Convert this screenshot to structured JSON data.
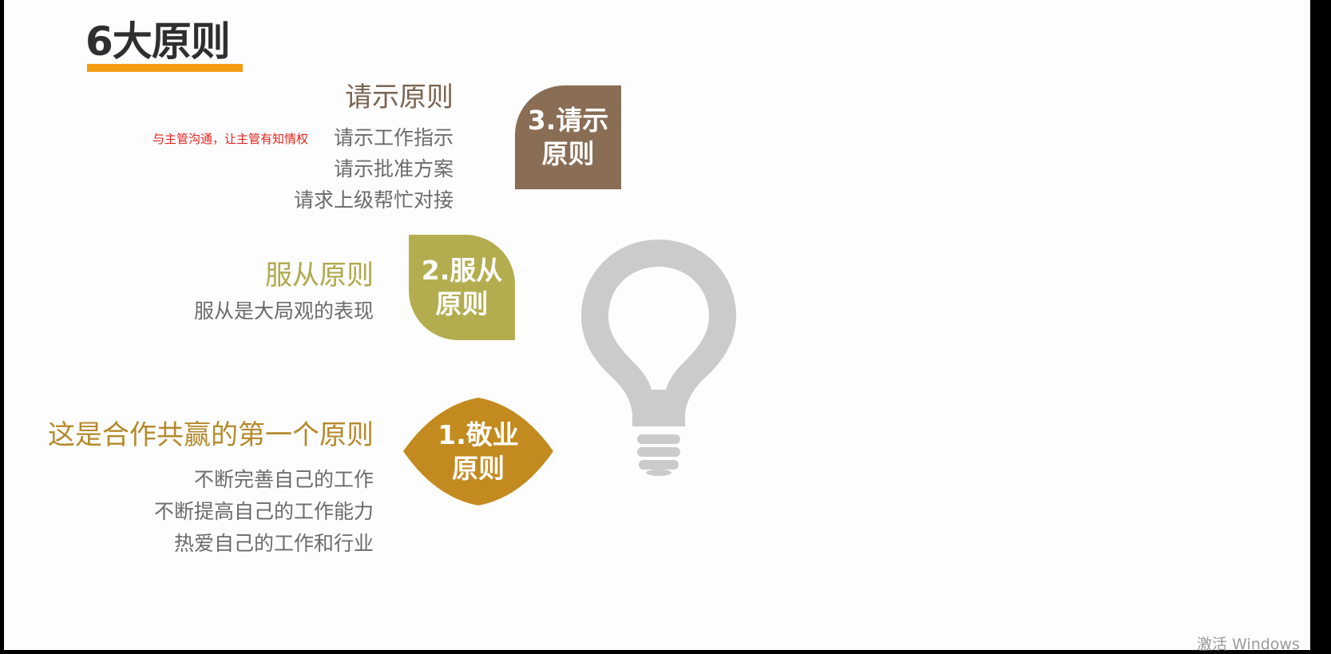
{
  "slide": {
    "title": "6大原则",
    "principle3": {
      "heading": "请示原则",
      "note": "与主管沟通，让主管有知情权",
      "items": [
        "请示工作指示",
        "请示批准方案",
        "请求上级帮忙对接"
      ],
      "badge_line1": "3.请示",
      "badge_line2": "原则",
      "color": "#8a6d55"
    },
    "principle2": {
      "heading": "服从原则",
      "items": [
        "服从是大局观的表现"
      ],
      "badge_line1": "2.服从",
      "badge_line2": "原则",
      "color": "#b4ad50"
    },
    "principle1": {
      "heading": "这是合作共赢的第一个原则",
      "items": [
        "不断完善自己的工作",
        "不断提高自己的工作能力",
        "热爱自己的工作和行业"
      ],
      "badge_line1": "1.敬业",
      "badge_line2": "原则",
      "color": "#c38a1f"
    },
    "icon": "lightbulb-icon",
    "accent_color": "#f39c12"
  },
  "watermark": "激活 Windows"
}
